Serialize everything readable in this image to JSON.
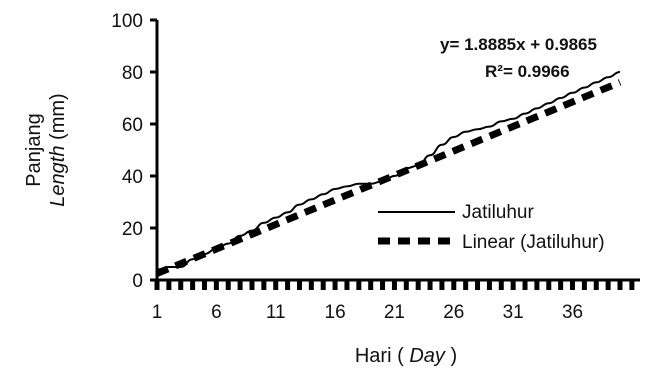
{
  "chart_data": {
    "type": "line",
    "xlabel": "Hari",
    "xlabel_italic": "Day",
    "ylabel_top": "Panjang",
    "ylabel_italic": "Length",
    "ylabel_unit": "(mm)",
    "xlim": [
      1,
      40
    ],
    "ylim": [
      0,
      100
    ],
    "x_ticks": [
      1,
      6,
      11,
      16,
      21,
      26,
      31,
      36
    ],
    "y_ticks": [
      0,
      20,
      40,
      60,
      80,
      100
    ],
    "series": [
      {
        "name": "Jatiluhur",
        "style": "solid",
        "x": [
          1,
          2,
          3,
          4,
          5,
          6,
          7,
          8,
          9,
          10,
          11,
          12,
          13,
          14,
          15,
          16,
          17,
          18,
          19,
          20,
          21,
          22,
          23,
          24,
          25,
          26,
          27,
          28,
          29,
          30,
          31,
          32,
          33,
          34,
          35,
          36,
          37,
          38,
          39,
          40
        ],
        "values": [
          4,
          5,
          5,
          8,
          10,
          12,
          14,
          17,
          19,
          22,
          24,
          26,
          29,
          31,
          33,
          35,
          36,
          37,
          37,
          38,
          40,
          43,
          44,
          48,
          52,
          55,
          57,
          58,
          59,
          61,
          62,
          64,
          66,
          68,
          70,
          72,
          74,
          76,
          78,
          80
        ]
      },
      {
        "name": "Linear (Jatiluhur)",
        "style": "dashed",
        "slope": 1.8885,
        "intercept": 0.9865
      }
    ],
    "annotations": {
      "equation": "y= 1.8885x + 0.9865",
      "r2_label": "R²= 0.9966"
    },
    "legend_placement": "center-right",
    "grid": false,
    "colors": {
      "line": "#000000"
    }
  }
}
